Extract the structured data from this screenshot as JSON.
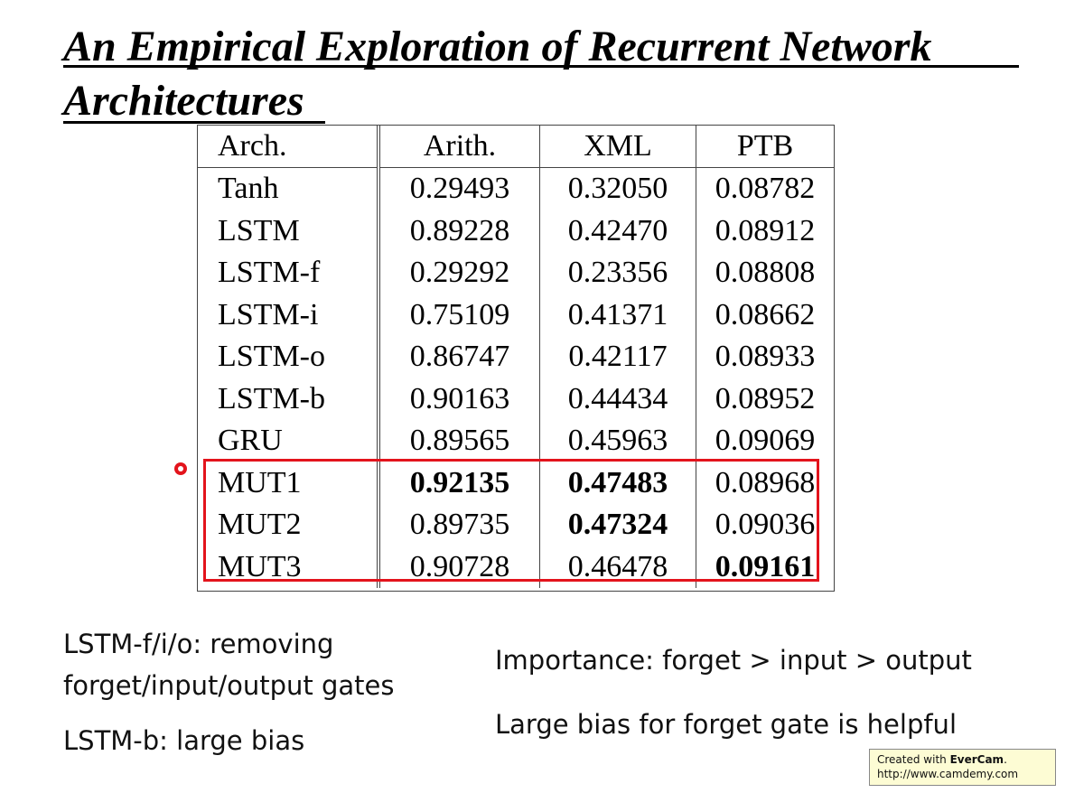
{
  "title": {
    "line1": "An Empirical Exploration of Recurrent Network",
    "line2": "Architectures"
  },
  "table": {
    "headers": [
      "Arch.",
      "Arith.",
      "XML",
      "PTB"
    ],
    "rows": [
      {
        "arch": "Tanh",
        "arith": "0.29493",
        "xml": "0.32050",
        "ptb": "0.08782"
      },
      {
        "arch": "LSTM",
        "arith": "0.89228",
        "xml": "0.42470",
        "ptb": "0.08912"
      },
      {
        "arch": "LSTM-f",
        "arith": "0.29292",
        "xml": "0.23356",
        "ptb": "0.08808"
      },
      {
        "arch": "LSTM-i",
        "arith": "0.75109",
        "xml": "0.41371",
        "ptb": "0.08662"
      },
      {
        "arch": "LSTM-o",
        "arith": "0.86747",
        "xml": "0.42117",
        "ptb": "0.08933"
      },
      {
        "arch": "LSTM-b",
        "arith": "0.90163",
        "xml": "0.44434",
        "ptb": "0.08952"
      },
      {
        "arch": "GRU",
        "arith": "0.89565",
        "xml": "0.45963",
        "ptb": "0.09069"
      },
      {
        "arch": "MUT1",
        "arith": "0.92135",
        "xml": "0.47483",
        "ptb": "0.08968"
      },
      {
        "arch": "MUT2",
        "arith": "0.89735",
        "xml": "0.47324",
        "ptb": "0.09036"
      },
      {
        "arch": "MUT3",
        "arith": "0.90728",
        "xml": "0.46478",
        "ptb": "0.09161"
      }
    ],
    "highlight_color": "#e3141c"
  },
  "notes": {
    "left1_line1": "LSTM-f/i/o: removing",
    "left1_line2": "forget/input/output gates",
    "left2": "LSTM-b: large bias",
    "right1": "Importance: forget > input > output",
    "right2": "Large bias for forget gate is helpful"
  },
  "watermark": {
    "prefix": "Created with ",
    "brand": "EverCam",
    "suffix": ".",
    "url": "http://www.camdemy.com"
  }
}
